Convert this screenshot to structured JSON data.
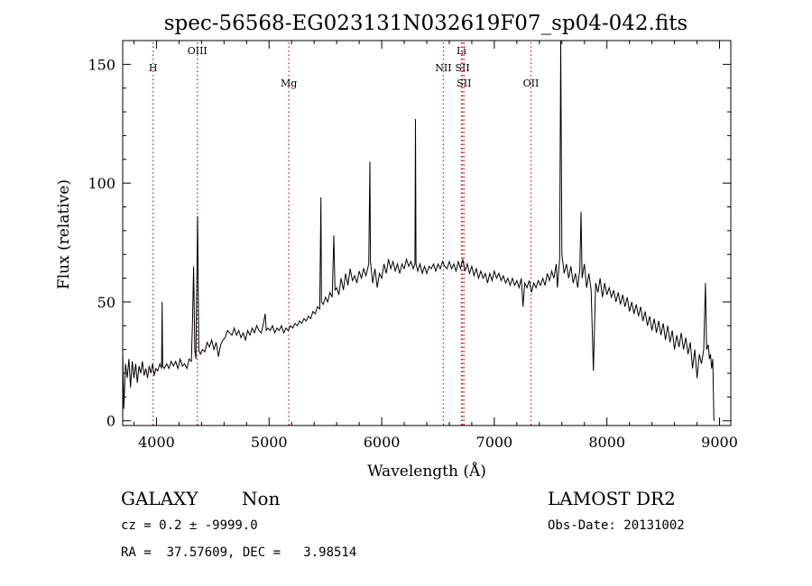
{
  "chart_data": {
    "type": "line",
    "title": "spec-56568-EG023131N032619F07_sp04-042.fits",
    "xlabel": "Wavelength (Å)",
    "ylabel": "Flux (relative)",
    "xlim": [
      3700,
      9100
    ],
    "ylim": [
      -2,
      160
    ],
    "x_ticks": [
      4000,
      5000,
      6000,
      7000,
      8000,
      9000
    ],
    "y_ticks": [
      0,
      50,
      100,
      150
    ],
    "grid": false,
    "series": [
      {
        "points": [
          [
            3700,
            29
          ],
          [
            3710,
            5
          ],
          [
            3725,
            24
          ],
          [
            3740,
            18
          ],
          [
            3755,
            26
          ],
          [
            3770,
            14
          ],
          [
            3785,
            25
          ],
          [
            3800,
            18
          ],
          [
            3815,
            24
          ],
          [
            3830,
            16
          ],
          [
            3845,
            23
          ],
          [
            3860,
            20
          ],
          [
            3875,
            25
          ],
          [
            3890,
            19
          ],
          [
            3905,
            22
          ],
          [
            3920,
            18
          ],
          [
            3935,
            23
          ],
          [
            3950,
            20
          ],
          [
            3965,
            24
          ],
          [
            3980,
            19
          ],
          [
            3995,
            22
          ],
          [
            4010,
            21
          ],
          [
            4030,
            24
          ],
          [
            4045,
            22
          ],
          [
            4050,
            50
          ],
          [
            4055,
            23
          ],
          [
            4070,
            22
          ],
          [
            4090,
            24
          ],
          [
            4110,
            22
          ],
          [
            4130,
            25
          ],
          [
            4150,
            23
          ],
          [
            4170,
            25
          ],
          [
            4190,
            22
          ],
          [
            4210,
            26
          ],
          [
            4230,
            23
          ],
          [
            4250,
            24
          ],
          [
            4270,
            22
          ],
          [
            4290,
            26
          ],
          [
            4310,
            25
          ],
          [
            4320,
            42
          ],
          [
            4330,
            65
          ],
          [
            4340,
            30
          ],
          [
            4350,
            26
          ],
          [
            4365,
            86
          ],
          [
            4375,
            30
          ],
          [
            4390,
            28
          ],
          [
            4410,
            30
          ],
          [
            4430,
            29
          ],
          [
            4450,
            33
          ],
          [
            4470,
            31
          ],
          [
            4490,
            34
          ],
          [
            4510,
            30
          ],
          [
            4530,
            33
          ],
          [
            4550,
            27
          ],
          [
            4570,
            32
          ],
          [
            4590,
            34
          ],
          [
            4610,
            35
          ],
          [
            4630,
            38
          ],
          [
            4650,
            37
          ],
          [
            4670,
            36
          ],
          [
            4690,
            39
          ],
          [
            4710,
            36
          ],
          [
            4730,
            38
          ],
          [
            4750,
            35
          ],
          [
            4770,
            37
          ],
          [
            4790,
            34
          ],
          [
            4810,
            38
          ],
          [
            4830,
            36
          ],
          [
            4850,
            39
          ],
          [
            4870,
            37
          ],
          [
            4890,
            40
          ],
          [
            4910,
            38
          ],
          [
            4930,
            37
          ],
          [
            4950,
            41
          ],
          [
            4965,
            45
          ],
          [
            4975,
            38
          ],
          [
            4990,
            39
          ],
          [
            5010,
            38
          ],
          [
            5030,
            40
          ],
          [
            5050,
            37
          ],
          [
            5070,
            39
          ],
          [
            5090,
            38
          ],
          [
            5110,
            40
          ],
          [
            5130,
            37
          ],
          [
            5150,
            39
          ],
          [
            5170,
            38
          ],
          [
            5190,
            40
          ],
          [
            5210,
            39
          ],
          [
            5230,
            41
          ],
          [
            5250,
            40
          ],
          [
            5270,
            42
          ],
          [
            5290,
            41
          ],
          [
            5310,
            43
          ],
          [
            5330,
            42
          ],
          [
            5350,
            44
          ],
          [
            5370,
            43
          ],
          [
            5390,
            46
          ],
          [
            5410,
            45
          ],
          [
            5430,
            48
          ],
          [
            5450,
            47
          ],
          [
            5460,
            94
          ],
          [
            5465,
            50
          ],
          [
            5480,
            49
          ],
          [
            5500,
            52
          ],
          [
            5520,
            50
          ],
          [
            5540,
            54
          ],
          [
            5560,
            52
          ],
          [
            5575,
            78
          ],
          [
            5585,
            55
          ],
          [
            5600,
            56
          ],
          [
            5620,
            53
          ],
          [
            5640,
            60
          ],
          [
            5660,
            55
          ],
          [
            5680,
            62
          ],
          [
            5700,
            57
          ],
          [
            5720,
            64
          ],
          [
            5740,
            59
          ],
          [
            5760,
            61
          ],
          [
            5780,
            58
          ],
          [
            5800,
            63
          ],
          [
            5820,
            60
          ],
          [
            5840,
            64
          ],
          [
            5860,
            61
          ],
          [
            5885,
            66
          ],
          [
            5895,
            109
          ],
          [
            5900,
            67
          ],
          [
            5920,
            58
          ],
          [
            5940,
            64
          ],
          [
            5960,
            56
          ],
          [
            5980,
            62
          ],
          [
            6000,
            60
          ],
          [
            6020,
            66
          ],
          [
            6040,
            62
          ],
          [
            6060,
            68
          ],
          [
            6080,
            64
          ],
          [
            6100,
            67
          ],
          [
            6120,
            63
          ],
          [
            6140,
            66
          ],
          [
            6160,
            62
          ],
          [
            6180,
            66
          ],
          [
            6200,
            64
          ],
          [
            6220,
            68
          ],
          [
            6240,
            65
          ],
          [
            6260,
            67
          ],
          [
            6280,
            64
          ],
          [
            6295,
            66
          ],
          [
            6300,
            127
          ],
          [
            6305,
            66
          ],
          [
            6320,
            63
          ],
          [
            6340,
            66
          ],
          [
            6360,
            62
          ],
          [
            6380,
            65
          ],
          [
            6400,
            62
          ],
          [
            6420,
            65
          ],
          [
            6440,
            64
          ],
          [
            6460,
            66
          ],
          [
            6480,
            63
          ],
          [
            6500,
            66
          ],
          [
            6520,
            64
          ],
          [
            6540,
            67
          ],
          [
            6560,
            65
          ],
          [
            6580,
            64
          ],
          [
            6600,
            67
          ],
          [
            6620,
            64
          ],
          [
            6640,
            66
          ],
          [
            6660,
            63
          ],
          [
            6680,
            67
          ],
          [
            6700,
            64
          ],
          [
            6720,
            68
          ],
          [
            6740,
            63
          ],
          [
            6760,
            66
          ],
          [
            6780,
            62
          ],
          [
            6800,
            65
          ],
          [
            6820,
            61
          ],
          [
            6840,
            64
          ],
          [
            6860,
            60
          ],
          [
            6880,
            63
          ],
          [
            6900,
            60
          ],
          [
            6920,
            62
          ],
          [
            6940,
            58
          ],
          [
            6960,
            62
          ],
          [
            6980,
            59
          ],
          [
            7000,
            63
          ],
          [
            7020,
            60
          ],
          [
            7040,
            62
          ],
          [
            7060,
            59
          ],
          [
            7080,
            61
          ],
          [
            7100,
            58
          ],
          [
            7120,
            60
          ],
          [
            7140,
            57
          ],
          [
            7160,
            60
          ],
          [
            7180,
            57
          ],
          [
            7200,
            59
          ],
          [
            7220,
            56
          ],
          [
            7240,
            60
          ],
          [
            7255,
            48
          ],
          [
            7270,
            58
          ],
          [
            7290,
            56
          ],
          [
            7310,
            59
          ],
          [
            7330,
            54
          ],
          [
            7350,
            58
          ],
          [
            7370,
            56
          ],
          [
            7390,
            59
          ],
          [
            7410,
            57
          ],
          [
            7430,
            60
          ],
          [
            7450,
            57
          ],
          [
            7470,
            62
          ],
          [
            7490,
            59
          ],
          [
            7510,
            63
          ],
          [
            7530,
            60
          ],
          [
            7550,
            66
          ],
          [
            7560,
            56
          ],
          [
            7570,
            62
          ],
          [
            7580,
            68
          ],
          [
            7590,
            162
          ],
          [
            7600,
            70
          ],
          [
            7620,
            62
          ],
          [
            7640,
            66
          ],
          [
            7660,
            60
          ],
          [
            7680,
            65
          ],
          [
            7700,
            58
          ],
          [
            7720,
            62
          ],
          [
            7740,
            56
          ],
          [
            7760,
            64
          ],
          [
            7770,
            88
          ],
          [
            7780,
            60
          ],
          [
            7800,
            66
          ],
          [
            7820,
            56
          ],
          [
            7840,
            62
          ],
          [
            7860,
            55
          ],
          [
            7880,
            21
          ],
          [
            7890,
            40
          ],
          [
            7900,
            58
          ],
          [
            7920,
            54
          ],
          [
            7940,
            60
          ],
          [
            7960,
            52
          ],
          [
            7980,
            58
          ],
          [
            8000,
            53
          ],
          [
            8020,
            56
          ],
          [
            8040,
            52
          ],
          [
            8060,
            55
          ],
          [
            8080,
            50
          ],
          [
            8100,
            54
          ],
          [
            8120,
            49
          ],
          [
            8140,
            53
          ],
          [
            8160,
            48
          ],
          [
            8180,
            52
          ],
          [
            8200,
            46
          ],
          [
            8220,
            50
          ],
          [
            8240,
            45
          ],
          [
            8260,
            49
          ],
          [
            8280,
            44
          ],
          [
            8300,
            48
          ],
          [
            8320,
            42
          ],
          [
            8340,
            46
          ],
          [
            8360,
            40
          ],
          [
            8380,
            44
          ],
          [
            8400,
            38
          ],
          [
            8420,
            43
          ],
          [
            8440,
            37
          ],
          [
            8460,
            42
          ],
          [
            8480,
            36
          ],
          [
            8500,
            41
          ],
          [
            8520,
            34
          ],
          [
            8540,
            40
          ],
          [
            8560,
            33
          ],
          [
            8580,
            38
          ],
          [
            8600,
            30
          ],
          [
            8620,
            36
          ],
          [
            8640,
            31
          ],
          [
            8660,
            37
          ],
          [
            8680,
            30
          ],
          [
            8700,
            35
          ],
          [
            8720,
            28
          ],
          [
            8740,
            33
          ],
          [
            8760,
            22
          ],
          [
            8780,
            30
          ],
          [
            8800,
            18
          ],
          [
            8820,
            28
          ],
          [
            8840,
            24
          ],
          [
            8860,
            30
          ],
          [
            8875,
            58
          ],
          [
            8885,
            30
          ],
          [
            8900,
            32
          ],
          [
            8910,
            26
          ],
          [
            8920,
            28
          ],
          [
            8930,
            22
          ],
          [
            8940,
            26
          ],
          [
            8950,
            0
          ]
        ]
      }
    ],
    "lines": [
      {
        "label": "H",
        "wavelength": 3970,
        "color": "#c03030",
        "label_row": 1
      },
      {
        "label": "OIII",
        "wavelength": 4363,
        "color": "#c03030",
        "label_row": 0
      },
      {
        "label": "Mg",
        "wavelength": 5175,
        "color": "#c03030",
        "label_row": 2
      },
      {
        "label": "NII",
        "wavelength": 6548,
        "color": "#c03030",
        "label_row": 1
      },
      {
        "label": "Li",
        "wavelength": 6708,
        "color": "#c03030",
        "label_row": 0
      },
      {
        "label": "SII",
        "wavelength": 6717,
        "color": "#c03030",
        "label_row": 1
      },
      {
        "label": "SII",
        "wavelength": 6731,
        "color": "#c03030",
        "label_row": 2
      },
      {
        "label": "OII",
        "wavelength": 7325,
        "color": "#c03030",
        "label_row": 2
      }
    ]
  },
  "info": {
    "object_class": "GALAXY",
    "subclass": "Non",
    "cz": "cz = 0.2 ± -9999.0",
    "coords": "RA =  37.57609, DEC =   3.98514",
    "survey": "LAMOST DR2",
    "obs_date": "Obs-Date: 20131002"
  }
}
